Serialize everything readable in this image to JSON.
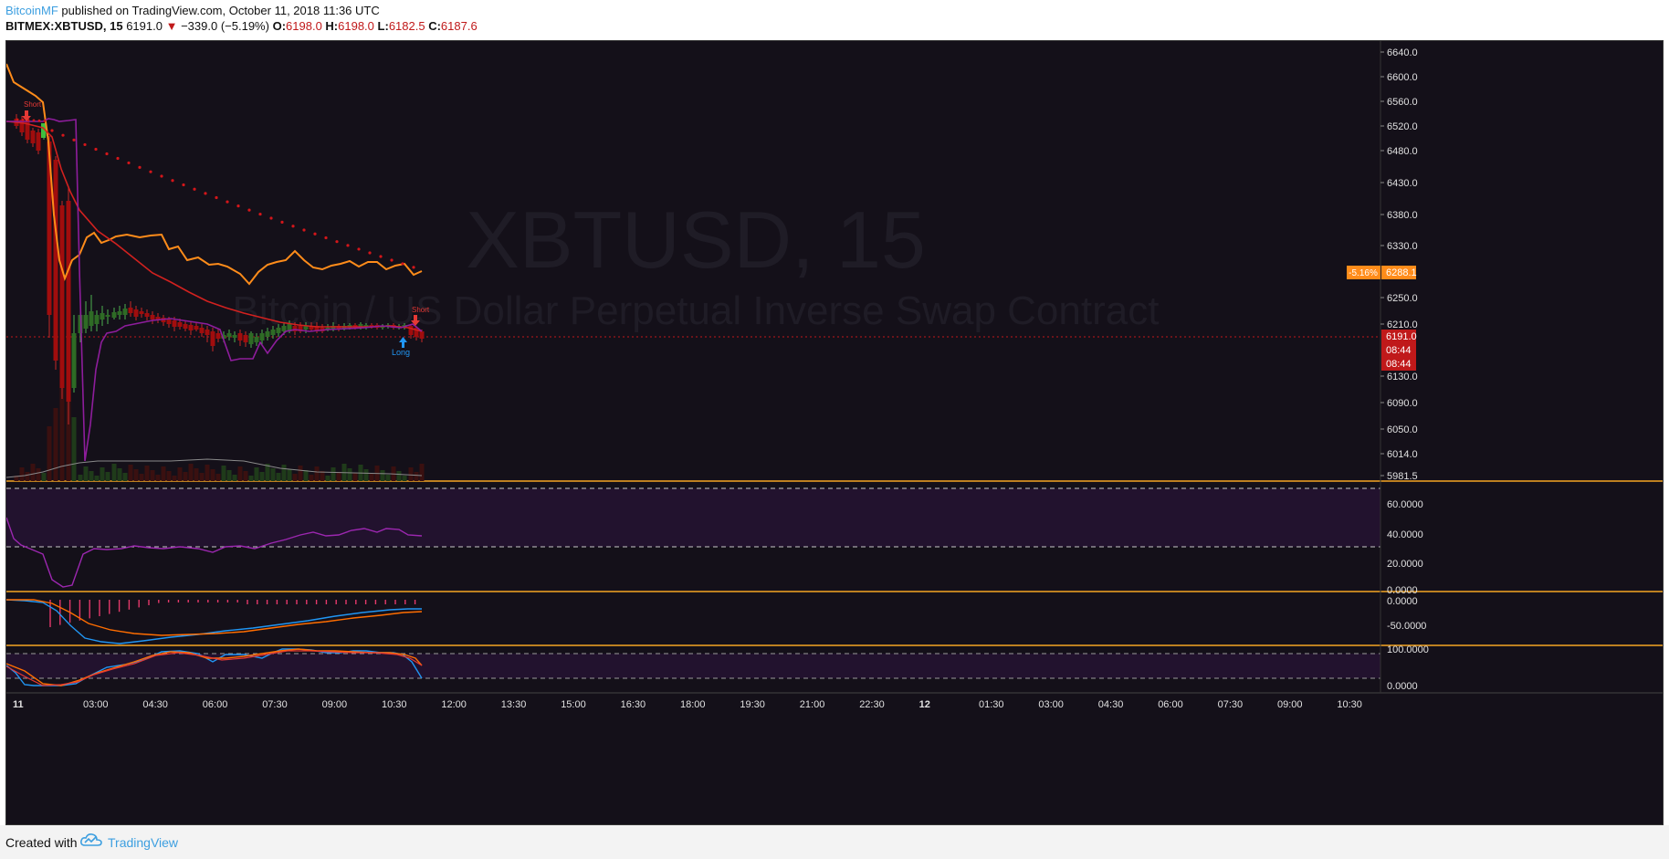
{
  "header": {
    "author": "BitcoinMF",
    "published_text": " published on TradingView.com, October 11, 2018 11:36 UTC",
    "symbol": "BITMEX:XBTUSD, 15",
    "last_price": "6191.0",
    "change_arrow": "▼",
    "change": "−339.0 (−5.19%)",
    "o_label": "O:",
    "o_value": "6198.0",
    "h_label": "H:",
    "h_value": "6198.0",
    "l_label": "L:",
    "l_value": "6182.5",
    "c_label": "C:",
    "c_value": "6187.6"
  },
  "watermark": {
    "title": "XBTUSD, 15",
    "subtitle": "Bitcoin / US Dollar Perpetual Inverse Swap Contract"
  },
  "price_axis": {
    "ticks": [
      "6640.0",
      "6600.0",
      "6560.0",
      "6520.0",
      "6480.0",
      "6430.0",
      "6380.0",
      "6330.0",
      "6250.0",
      "6210.0",
      "6130.0",
      "6090.0",
      "6050.0",
      "6014.0",
      "5981.5"
    ],
    "badge_pct": "-5.16%",
    "badge_price": "6288.1",
    "current_price": "6191.0",
    "countdown": "08:44"
  },
  "rsi_axis": {
    "ticks": [
      "60.0000",
      "40.0000",
      "20.0000",
      "0.0000"
    ]
  },
  "macd_axis": {
    "ticks": [
      "0.0000",
      "-50.0000"
    ]
  },
  "stoch_axis": {
    "ticks": [
      "100.0000",
      "0.0000"
    ]
  },
  "time_axis": {
    "ticks": [
      "11",
      "03:00",
      "04:30",
      "06:00",
      "07:30",
      "09:00",
      "10:30",
      "12:00",
      "13:30",
      "15:00",
      "16:30",
      "18:00",
      "19:30",
      "21:00",
      "22:30",
      "12",
      "01:30",
      "03:00",
      "04:30",
      "06:00",
      "07:30",
      "09:00",
      "10:30"
    ]
  },
  "signals": {
    "short_label": "Short",
    "long_label": "Long"
  },
  "colors": {
    "background": "#141019",
    "ema_orange": "#ff8c1a",
    "ma_red": "#d2211f",
    "psar_dots": "#d4161a",
    "rsi_line": "#9c27b0",
    "macd_blue": "#2196f3",
    "macd_orange": "#ff6d00",
    "up_candle": "#2e6b25",
    "down_candle": "#a10d0d",
    "accent_blue": "#3d9fe0"
  },
  "footer": {
    "created_with": "Created with",
    "brand": "TradingView"
  }
}
